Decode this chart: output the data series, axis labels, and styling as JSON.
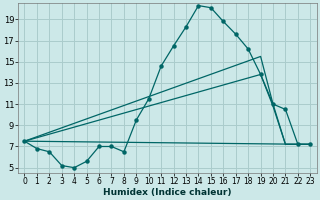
{
  "xlabel": "Humidex (Indice chaleur)",
  "background_color": "#cce8e8",
  "grid_color": "#aacccc",
  "line_color": "#006666",
  "xlim": [
    -0.5,
    23.5
  ],
  "ylim": [
    4.5,
    20.5
  ],
  "xticks": [
    0,
    1,
    2,
    3,
    4,
    5,
    6,
    7,
    8,
    9,
    10,
    11,
    12,
    13,
    14,
    15,
    16,
    17,
    18,
    19,
    20,
    21,
    22,
    23
  ],
  "yticks": [
    5,
    7,
    9,
    11,
    13,
    15,
    17,
    19
  ],
  "series1_x": [
    0,
    1,
    2,
    3,
    4,
    5,
    6,
    7,
    8,
    9,
    10,
    11,
    12,
    13,
    14,
    15,
    16,
    17,
    18,
    19,
    20,
    21,
    22,
    23
  ],
  "series1_y": [
    7.5,
    6.8,
    6.5,
    5.2,
    5.0,
    5.6,
    7.0,
    7.0,
    6.5,
    9.5,
    11.5,
    14.6,
    16.5,
    18.3,
    20.3,
    20.1,
    18.8,
    17.6,
    16.2,
    13.8,
    11.0,
    10.5,
    7.2,
    7.2
  ],
  "series2_x": [
    0,
    23
  ],
  "series2_y": [
    7.5,
    7.2
  ],
  "series3_x": [
    0,
    19,
    20,
    21,
    22,
    23
  ],
  "series3_y": [
    7.5,
    13.8,
    10.8,
    7.2,
    7.2,
    7.2
  ],
  "series4_x": [
    0,
    19,
    20,
    21,
    22,
    23
  ],
  "series4_y": [
    7.5,
    15.5,
    11.0,
    7.2,
    7.2,
    7.2
  ]
}
